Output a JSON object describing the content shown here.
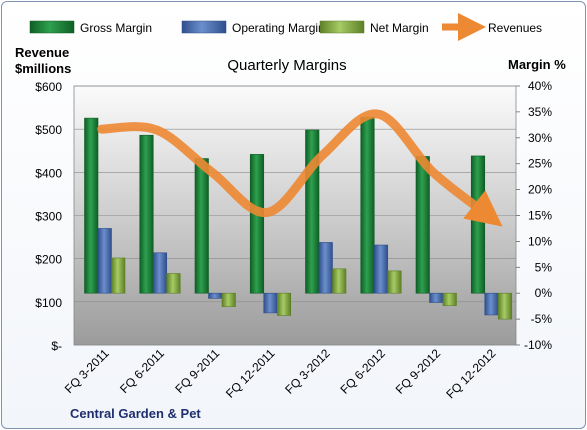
{
  "chart_data": {
    "type": "bar",
    "title": "Quarterly Margins",
    "left_axis_label": [
      "Revenue",
      "$millions"
    ],
    "right_axis_label": "Margin %",
    "company": "Central Garden & Pet",
    "categories": [
      "FQ 3-2011",
      "FQ 6-2011",
      "FQ 9-2011",
      "FQ 12-2011",
      "FQ 3-2012",
      "FQ 6-2012",
      "FQ 9-2012",
      "FQ 12-2012"
    ],
    "left_ticks": [
      "$-",
      "$100",
      "$200",
      "$300",
      "$400",
      "$500",
      "$600"
    ],
    "right_ticks": [
      "-10%",
      "-5%",
      "0%",
      "5%",
      "10%",
      "15%",
      "20%",
      "25%",
      "30%",
      "35%",
      "40%"
    ],
    "left_ylim": [
      0,
      600
    ],
    "right_ylim": [
      -10,
      40
    ],
    "series": [
      {
        "name": "Gross Margin",
        "axis": "right",
        "color": "#1f8a3c",
        "values": [
          33.8,
          30.5,
          26.0,
          26.8,
          31.5,
          34.0,
          26.4,
          26.5
        ]
      },
      {
        "name": "Operating Margin",
        "axis": "right",
        "color": "#4f74b8",
        "values": [
          12.5,
          7.8,
          -1.0,
          -3.8,
          9.8,
          9.3,
          -1.8,
          -4.2
        ]
      },
      {
        "name": "Net Margin",
        "axis": "right",
        "color": "#8ab24a",
        "values": [
          6.8,
          3.8,
          -2.6,
          -4.3,
          4.7,
          4.3,
          -2.4,
          -5.0
        ]
      }
    ],
    "line_series": {
      "name": "Revenues",
      "axis": "left",
      "color": "#ed8833",
      "values": [
        500,
        498,
        400,
        307,
        440,
        535,
        400,
        300
      ]
    },
    "legend_position": "top"
  }
}
